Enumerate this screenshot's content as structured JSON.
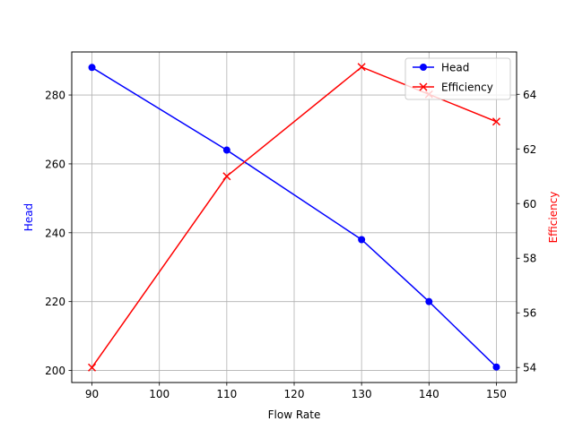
{
  "chart_data": {
    "type": "line",
    "title": "",
    "xlabel": "Flow Rate",
    "ylabel_left": "Head",
    "ylabel_right": "Efficiency",
    "x": [
      90,
      110,
      130,
      140,
      150
    ],
    "xlim": [
      87,
      153
    ],
    "xticks": [
      90,
      100,
      110,
      120,
      130,
      140,
      150
    ],
    "ylim_left": [
      196.5,
      292.5
    ],
    "yticks_left": [
      200,
      220,
      240,
      260,
      280
    ],
    "ylim_right": [
      53.45,
      65.55
    ],
    "yticks_right": [
      54,
      56,
      58,
      60,
      62,
      64
    ],
    "grid": true,
    "legend_position": "top-right",
    "series": [
      {
        "name": "Head",
        "axis": "left",
        "marker": "circle",
        "color": "#0000ff",
        "values": [
          288,
          264,
          238,
          220,
          201
        ]
      },
      {
        "name": "Efficiency",
        "axis": "right",
        "marker": "x",
        "color": "#ff0000",
        "values": [
          54,
          61,
          65,
          64,
          63
        ]
      }
    ]
  }
}
